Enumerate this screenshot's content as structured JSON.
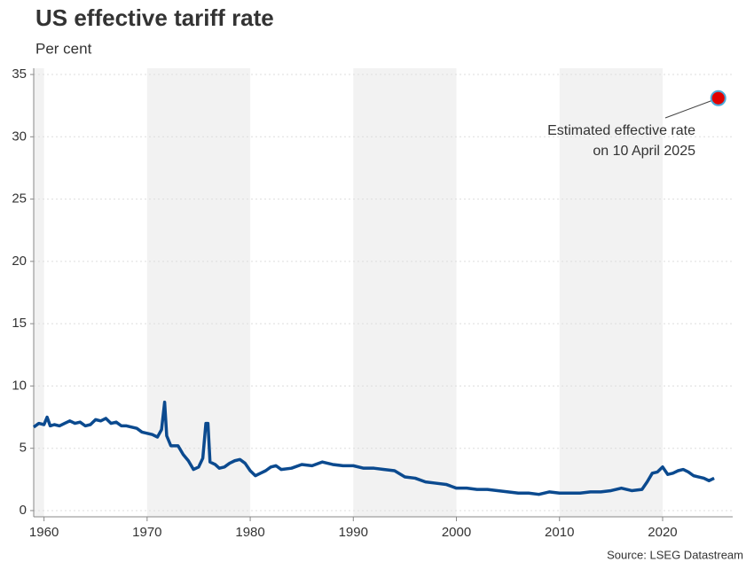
{
  "chart_data": {
    "type": "line",
    "title": "US effective tariff rate",
    "subtitle": "Per cent",
    "source": "Source: LSEG Datastream",
    "x": [
      1959,
      1959.5,
      1960,
      1960.3,
      1960.6,
      1961,
      1961.5,
      1962,
      1962.5,
      1963,
      1963.5,
      1964,
      1964.5,
      1965,
      1965.5,
      1966,
      1966.5,
      1967,
      1967.5,
      1968,
      1969,
      1969.5,
      1970,
      1970.5,
      1971,
      1971.4,
      1971.7,
      1971.9,
      1972.3,
      1973,
      1973.5,
      1974,
      1974.5,
      1975,
      1975.4,
      1975.7,
      1975.9,
      1976.1,
      1976.6,
      1977,
      1977.5,
      1978,
      1978.5,
      1979,
      1979.5,
      1980,
      1980.5,
      1981,
      1981.5,
      1982,
      1982.5,
      1983,
      1984,
      1985,
      1986,
      1987,
      1988,
      1989,
      1990,
      1991,
      1992,
      1993,
      1994,
      1995,
      1996,
      1997,
      1998,
      1999,
      2000,
      2001,
      2002,
      2003,
      2004,
      2005,
      2006,
      2007,
      2008,
      2009,
      2010,
      2011,
      2012,
      2013,
      2014,
      2015,
      2016,
      2017,
      2018,
      2018.5,
      2019,
      2019.5,
      2020,
      2020.5,
      2021,
      2021.5,
      2022,
      2022.5,
      2023,
      2023.5,
      2024,
      2024.5,
      2025
    ],
    "series": [
      {
        "name": "US effective tariff rate",
        "color": "#0b4a8f",
        "values": [
          6.7,
          7.0,
          6.9,
          7.5,
          6.8,
          6.9,
          6.8,
          7.0,
          7.2,
          7.0,
          7.1,
          6.8,
          6.9,
          7.3,
          7.2,
          7.4,
          7.0,
          7.1,
          6.8,
          6.8,
          6.6,
          6.3,
          6.2,
          6.1,
          5.9,
          6.5,
          8.7,
          6.0,
          5.2,
          5.2,
          4.5,
          4.0,
          3.3,
          3.5,
          4.2,
          7.0,
          7.0,
          3.9,
          3.7,
          3.4,
          3.5,
          3.8,
          4.0,
          4.1,
          3.8,
          3.2,
          2.8,
          3.0,
          3.2,
          3.5,
          3.6,
          3.3,
          3.4,
          3.7,
          3.6,
          3.9,
          3.7,
          3.6,
          3.6,
          3.4,
          3.4,
          3.3,
          3.2,
          2.7,
          2.6,
          2.3,
          2.2,
          2.1,
          1.8,
          1.8,
          1.7,
          1.7,
          1.6,
          1.5,
          1.4,
          1.4,
          1.3,
          1.5,
          1.4,
          1.4,
          1.4,
          1.5,
          1.5,
          1.6,
          1.8,
          1.6,
          1.7,
          2.3,
          3.0,
          3.1,
          3.5,
          2.9,
          3.0,
          3.2,
          3.3,
          3.1,
          2.8,
          2.7,
          2.6,
          2.4,
          2.6
        ]
      }
    ],
    "annotation": {
      "text": [
        "Estimated effective rate",
        "on 10 April 2025"
      ],
      "x": 2025.4,
      "y": 33.1,
      "color": "#e00000"
    },
    "xlim": [
      1959,
      2026.8
    ],
    "xticks": [
      1960,
      1970,
      1980,
      1990,
      2000,
      2010,
      2020
    ],
    "ylim": [
      -0.5,
      35.5
    ],
    "yticks": [
      0,
      5,
      10,
      15,
      20,
      25,
      30,
      35
    ],
    "grid": true
  }
}
